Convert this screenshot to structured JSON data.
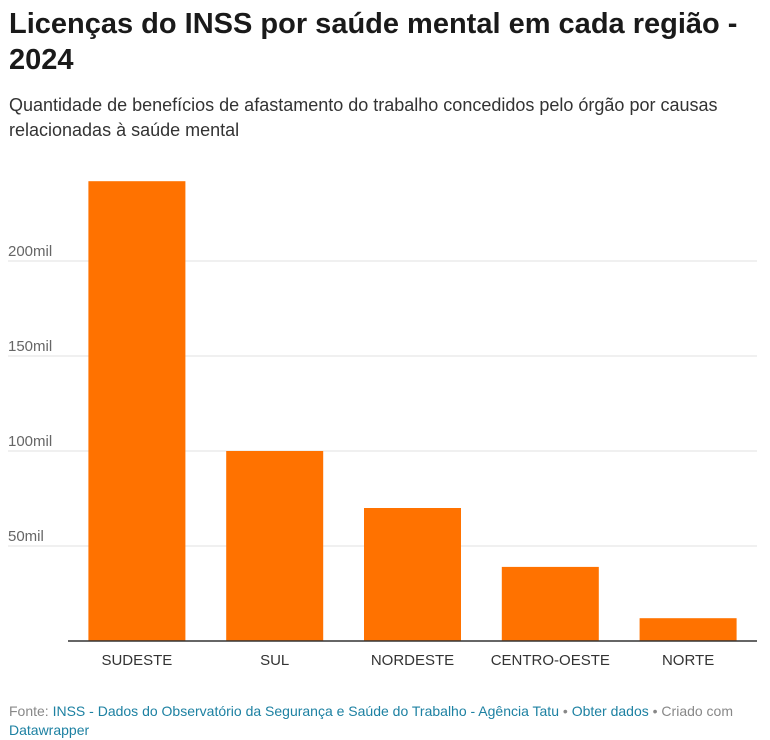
{
  "chart_data": {
    "type": "bar",
    "title": "Licenças do INSS por saúde mental em cada região - 2024",
    "subtitle": "Quantidade de benefícios de afastamento do trabalho concedidos pelo órgão por causas relacionadas à saúde mental",
    "categories": [
      "SUDESTE",
      "SUL",
      "NORDESTE",
      "CENTRO-OESTE",
      "NORTE"
    ],
    "values": [
      242000,
      100000,
      70000,
      39000,
      12000
    ],
    "xlabel": "",
    "ylabel": "",
    "ylim": [
      0,
      250000
    ],
    "yticks": [
      {
        "value": 50000,
        "label": "50mil"
      },
      {
        "value": 100000,
        "label": "100mil"
      },
      {
        "value": 150000,
        "label": "150mil"
      },
      {
        "value": 200000,
        "label": "200mil"
      }
    ],
    "grid": true,
    "bar_color": "#ff7200"
  },
  "footer": {
    "source_prefix": "Fonte: ",
    "source_link": "INSS - Dados do Observatório da Segurança e Saúde do Trabalho - Agência Tatu",
    "sep1": " • ",
    "get_data": "Obter dados",
    "created_prefix": " • Criado com ",
    "datawrapper": "Datawrapper"
  }
}
